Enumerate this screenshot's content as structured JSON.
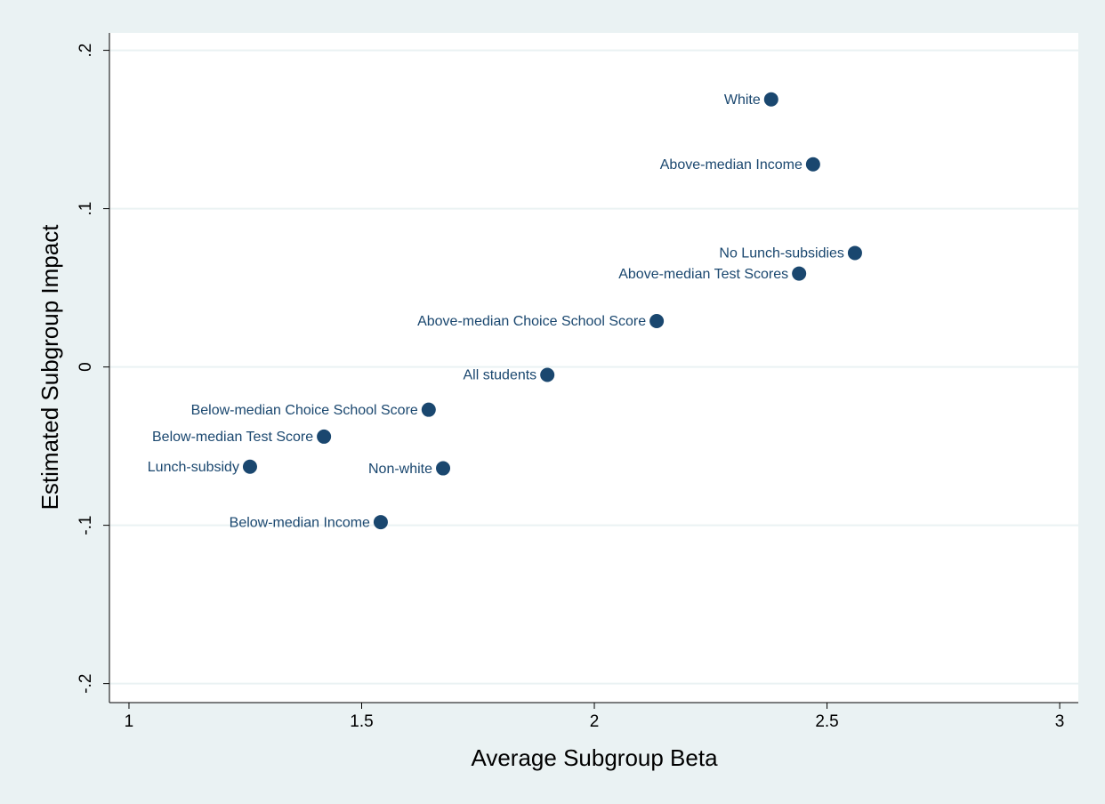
{
  "chart_data": {
    "type": "scatter",
    "xlabel": "Average Subgroup Beta",
    "ylabel": "Estimated Subgroup Impact",
    "color": "#1a476f",
    "labels": [
      "White",
      "Above-median Income",
      "No Lunch-subsidies",
      "Above-median Test Scores",
      "Above-median Choice School Score",
      "All students",
      "Below-median Choice School Score",
      "Below-median Test Score",
      "Lunch-subsidy",
      "Non-white",
      "Below-median Income"
    ],
    "x": [
      2.38,
      2.47,
      2.56,
      2.44,
      2.134,
      1.899,
      1.644,
      1.419,
      1.26,
      1.675,
      1.541
    ],
    "values": [
      0.169,
      0.128,
      0.072,
      0.059,
      0.029,
      -0.005,
      -0.027,
      -0.044,
      -0.063,
      -0.064,
      -0.098
    ],
    "xlim": [
      0.958,
      3.04
    ],
    "ylim": [
      -0.212,
      0.211
    ],
    "xticks": [
      1,
      1.5,
      2,
      2.5,
      3
    ],
    "yticks": [
      {
        "value": -0.2,
        "label": "-.2"
      },
      {
        "value": -0.1,
        "label": "-.1"
      },
      0,
      {
        "value": 0.1,
        "label": ".1"
      },
      {
        "value": 0.2,
        "label": ".2"
      }
    ],
    "grid": true
  }
}
